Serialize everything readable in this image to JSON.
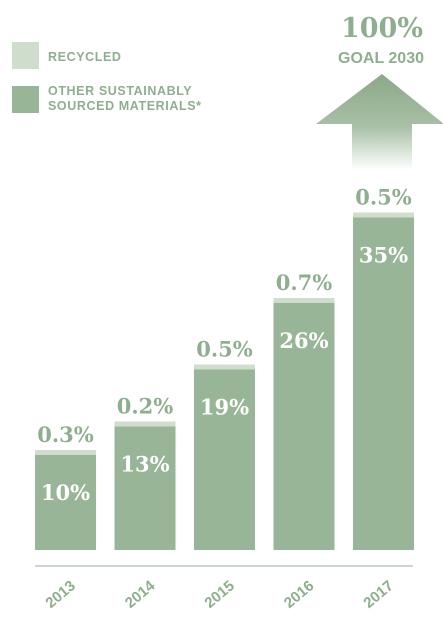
{
  "legend": {
    "recycled": "RECYCLED",
    "other_line1": "OTHER SUSTAINABLY",
    "other_line2": "SOURCED MATERIALS*"
  },
  "goal": {
    "percent": "100%",
    "label": "GOAL 2030",
    "value": 100
  },
  "colors": {
    "recycled": "#cfddcd",
    "other": "#99b597",
    "text": "#8fae8f",
    "axis": "#b9c9b7"
  },
  "chart_data": {
    "type": "bar",
    "stacked": true,
    "categories": [
      "2013",
      "2014",
      "2015",
      "2016",
      "2017"
    ],
    "series": [
      {
        "name": "OTHER SUSTAINABLY SOURCED MATERIALS*",
        "values": [
          10,
          13,
          19,
          26,
          35
        ],
        "labels": [
          "10%",
          "13%",
          "19%",
          "26%",
          "35%"
        ]
      },
      {
        "name": "RECYCLED",
        "values": [
          0.3,
          0.2,
          0.5,
          0.7,
          0.5
        ],
        "labels": [
          "0.3%",
          "0.2%",
          "0.5%",
          "0.7%",
          "0.5%"
        ]
      }
    ],
    "title": "",
    "xlabel": "",
    "ylabel": "",
    "legend_position": "top-left"
  }
}
